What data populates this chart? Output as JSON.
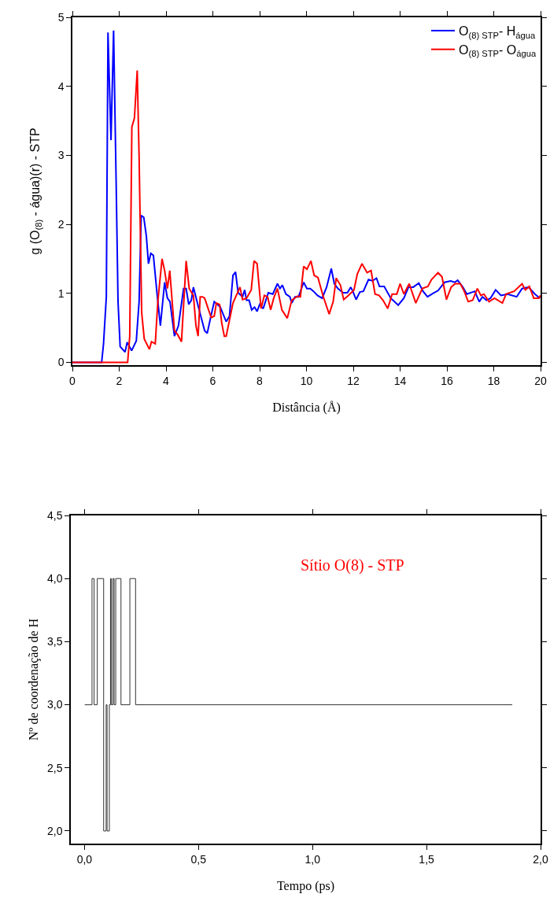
{
  "chart_data": [
    {
      "type": "line",
      "xlabel": "Distância (Å)",
      "ylabel": "g (O$_{(8)}$ - água)(r) - STP",
      "xlim": [
        0,
        20
      ],
      "xticks": [
        0,
        2,
        4,
        6,
        8,
        10,
        12,
        14,
        16,
        18,
        20
      ],
      "ylim": [
        -0.04,
        5
      ],
      "yticks": [
        0,
        1,
        2,
        3,
        4,
        5
      ],
      "grid": false,
      "legend": "top right",
      "line_style": "solid",
      "marker": "none",
      "series": [
        {
          "name": "O$_{(8) STP}$- H$_{água}$",
          "color": "#0000ff",
          "x": [
            0,
            1.25,
            1.33,
            1.45,
            1.52,
            1.65,
            1.76,
            1.87,
            1.95,
            2.04,
            2.25,
            2.34,
            2.53,
            2.73,
            2.85,
            2.94,
            3.05,
            3.16,
            3.25,
            3.35,
            3.46,
            3.63,
            3.76,
            3.94,
            4.06,
            4.17,
            4.36,
            4.53,
            4.75,
            4.86,
            4.97,
            5.08,
            5.17,
            5.37,
            5.65,
            5.76,
            5.93,
            6.06,
            6.32,
            6.57,
            6.71,
            6.86,
            6.97,
            7.08,
            7.27,
            7.36,
            7.44,
            7.55,
            7.66,
            7.78,
            7.89,
            8.0,
            8.15,
            8.37,
            8.56,
            8.76,
            8.87,
            8.97,
            9.12,
            9.29,
            9.37,
            9.51,
            9.66,
            9.88,
            10.02,
            10.16,
            10.3,
            10.47,
            10.67,
            10.86,
            11.06,
            11.19,
            11.34,
            11.56,
            11.75,
            11.89,
            11.98,
            12.12,
            12.28,
            12.43,
            12.65,
            12.82,
            12.99,
            13.12,
            13.32,
            13.6,
            13.92,
            14.16,
            14.36,
            14.56,
            14.8,
            14.98,
            15.17,
            15.4,
            15.62,
            15.9,
            16.16,
            16.33,
            16.46,
            16.68,
            16.85,
            17.19,
            17.38,
            17.52,
            17.69,
            17.86,
            18.08,
            18.31,
            18.59,
            18.98,
            19.21,
            19.49,
            19.76,
            19.97
          ],
          "values": [
            0,
            0,
            0.27,
            0.95,
            4.78,
            3.22,
            4.81,
            2.59,
            0.88,
            0.23,
            0.15,
            0.29,
            0.17,
            0.31,
            0.88,
            2.13,
            2.1,
            1.83,
            1.43,
            1.58,
            1.55,
            0.95,
            0.53,
            1.16,
            0.93,
            0.88,
            0.38,
            0.53,
            1.07,
            1.07,
            0.84,
            0.9,
            1.09,
            0.82,
            0.46,
            0.42,
            0.69,
            0.88,
            0.8,
            0.59,
            0.67,
            1.26,
            1.31,
            1.01,
            0.95,
            1.05,
            0.9,
            0.9,
            0.76,
            0.8,
            0.74,
            0.84,
            0.78,
            1.01,
            0.99,
            1.14,
            1.07,
            1.12,
            0.99,
            0.95,
            0.86,
            0.95,
            0.95,
            1.16,
            1.07,
            1.07,
            1.03,
            0.97,
            0.93,
            1.09,
            1.36,
            1.14,
            1.07,
            1.01,
            1.01,
            1.09,
            1.03,
            0.91,
            1.02,
            1.03,
            1.2,
            1.18,
            1.22,
            1.1,
            1.1,
            0.93,
            0.83,
            0.93,
            1.09,
            1.09,
            1.15,
            1.03,
            0.95,
            1.0,
            1.04,
            1.16,
            1.18,
            1.16,
            1.19,
            1.09,
            0.99,
            1.03,
            0.88,
            0.95,
            0.9,
            0.93,
            1.05,
            0.97,
            0.99,
            0.95,
            1.07,
            1.09,
            0.99,
            0.93
          ]
        },
        {
          "name": "O$_{(8) STP}$- O$_{água}$",
          "color": "#ff0000",
          "x": [
            0,
            2.36,
            2.45,
            2.54,
            2.65,
            2.77,
            2.85,
            2.96,
            3.07,
            3.29,
            3.38,
            3.54,
            3.65,
            3.83,
            3.94,
            4.06,
            4.16,
            4.36,
            4.5,
            4.66,
            4.86,
            4.99,
            5.17,
            5.28,
            5.37,
            5.46,
            5.56,
            5.65,
            5.76,
            5.93,
            6.06,
            6.15,
            6.29,
            6.38,
            6.49,
            6.57,
            6.86,
            7.16,
            7.27,
            7.44,
            7.64,
            7.76,
            7.89,
            8.06,
            8.2,
            8.34,
            8.47,
            8.6,
            8.76,
            8.95,
            9.18,
            9.37,
            9.62,
            9.74,
            9.88,
            10.02,
            10.19,
            10.33,
            10.49,
            10.71,
            10.97,
            11.14,
            11.27,
            11.45,
            11.59,
            11.79,
            12.03,
            12.17,
            12.37,
            12.59,
            12.76,
            12.93,
            13.1,
            13.27,
            13.47,
            13.66,
            13.86,
            14.0,
            14.16,
            14.39,
            14.67,
            14.95,
            15.19,
            15.34,
            15.62,
            15.79,
            15.98,
            16.18,
            16.35,
            16.57,
            16.74,
            16.91,
            17.1,
            17.3,
            17.45,
            17.58,
            17.8,
            18.03,
            18.37,
            18.53,
            18.87,
            19.21,
            19.35,
            19.52,
            19.71,
            19.93,
            19.99
          ],
          "values": [
            0,
            0,
            0.38,
            3.41,
            3.54,
            4.23,
            2.97,
            0.72,
            0.34,
            0.19,
            0.3,
            0.27,
            0.88,
            1.5,
            1.33,
            1.07,
            1.33,
            0.46,
            0.4,
            0.3,
            1.47,
            1.07,
            0.97,
            0.53,
            0.38,
            0.95,
            0.95,
            0.93,
            0.82,
            0.65,
            0.67,
            0.86,
            0.84,
            0.57,
            0.38,
            0.38,
            0.86,
            1.09,
            0.91,
            0.93,
            1.05,
            1.47,
            1.43,
            0.78,
            0.97,
            0.95,
            0.76,
            0.93,
            1.07,
            0.76,
            0.64,
            0.9,
            0.96,
            0.95,
            1.39,
            1.35,
            1.47,
            1.26,
            1.23,
            0.96,
            0.7,
            0.88,
            1.22,
            1.12,
            0.91,
            0.97,
            1.05,
            1.28,
            1.43,
            1.3,
            1.33,
            0.99,
            0.97,
            0.9,
            0.78,
            0.99,
            0.99,
            1.14,
            0.99,
            1.14,
            0.86,
            1.07,
            1.1,
            1.2,
            1.3,
            1.24,
            0.91,
            1.09,
            1.14,
            1.14,
            1.03,
            0.88,
            0.9,
            1.07,
            0.97,
            0.99,
            0.88,
            0.93,
            0.86,
            0.99,
            1.03,
            1.14,
            1.05,
            1.1,
            0.93,
            0.93,
            0.97
          ]
        }
      ]
    },
    {
      "type": "step",
      "xlabel": "Tempo (ps)",
      "ylabel": "Nº de coordenação de H",
      "annotations": [
        "Sítio O(8) - STP"
      ],
      "xlim": [
        -0.06,
        2.0
      ],
      "xticks": [
        {
          "value": 0,
          "label": "0,0"
        },
        {
          "value": 0.5,
          "label": "0,5"
        },
        {
          "value": 1,
          "label": "1,0"
        },
        {
          "value": 1.5,
          "label": "1,5"
        },
        {
          "value": 2,
          "label": "2,0"
        }
      ],
      "ylim": [
        1.9,
        4.5
      ],
      "yticks": [
        {
          "value": 2,
          "label": "2,0"
        },
        {
          "value": 2.5,
          "label": "2,5"
        },
        {
          "value": 3,
          "label": "3,0"
        },
        {
          "value": 3.5,
          "label": "3,5"
        },
        {
          "value": 4,
          "label": "4,0"
        },
        {
          "value": 4.5,
          "label": "4,5"
        }
      ],
      "grid": false,
      "legend": false,
      "marker": "none",
      "line_style": "solid",
      "series": [
        {
          "color": "#333333",
          "x": [
            0.001,
            0.033,
            0.042,
            0.056,
            0.084,
            0.095,
            0.099,
            0.109,
            0.114,
            0.118,
            0.125,
            0.13,
            0.137,
            0.16,
            0.199,
            0.224,
            1.876
          ],
          "values": [
            3,
            4,
            3,
            4,
            2,
            3,
            2,
            3,
            4,
            3,
            4,
            3,
            4,
            3,
            4,
            3,
            3
          ]
        }
      ]
    }
  ]
}
